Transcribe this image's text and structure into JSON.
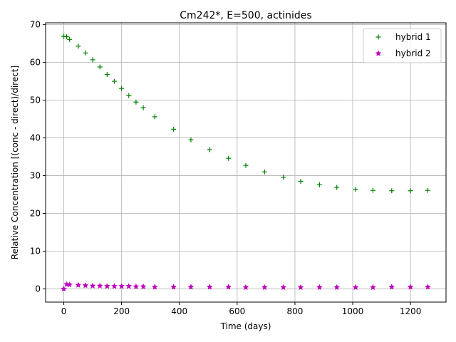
{
  "chart_data": {
    "type": "scatter",
    "title": "Cm242*, E=500, actinides",
    "xlabel": "Time (days)",
    "ylabel": "Relative Concentration [(conc - direct)/direct]",
    "xlim": [
      -63,
      1323
    ],
    "ylim": [
      -3.5,
      70.5
    ],
    "xticks": [
      0,
      200,
      400,
      600,
      800,
      1000,
      1200
    ],
    "yticks": [
      0,
      10,
      20,
      30,
      40,
      50,
      60,
      70
    ],
    "grid": true,
    "legend_position": "upper right",
    "series": [
      {
        "name": "hybrid 1",
        "marker": "plus",
        "color": "#008000",
        "x": [
          0,
          10,
          20,
          50,
          75,
          100,
          125,
          150,
          175,
          200,
          225,
          250,
          275,
          315,
          380,
          440,
          505,
          570,
          630,
          695,
          760,
          820,
          885,
          945,
          1010,
          1070,
          1135,
          1200,
          1260
        ],
        "y": [
          66.9,
          66.8,
          66.1,
          64.3,
          62.5,
          60.7,
          58.8,
          56.8,
          55.0,
          53.1,
          51.2,
          49.5,
          48.0,
          45.6,
          42.3,
          39.5,
          36.9,
          34.6,
          32.7,
          31.0,
          29.6,
          28.5,
          27.6,
          26.9,
          26.4,
          26.1,
          26.0,
          26.0,
          26.1
        ]
      },
      {
        "name": "hybrid 2",
        "marker": "star",
        "color": "#bf00bf",
        "x": [
          0,
          10,
          20,
          50,
          75,
          100,
          125,
          150,
          175,
          200,
          225,
          250,
          275,
          315,
          380,
          440,
          505,
          570,
          630,
          695,
          760,
          820,
          885,
          945,
          1010,
          1070,
          1135,
          1200,
          1260
        ],
        "y": [
          0.0,
          1.2,
          1.1,
          1.0,
          0.9,
          0.8,
          0.8,
          0.7,
          0.7,
          0.7,
          0.7,
          0.6,
          0.6,
          0.5,
          0.5,
          0.5,
          0.5,
          0.5,
          0.4,
          0.4,
          0.4,
          0.4,
          0.4,
          0.4,
          0.4,
          0.4,
          0.5,
          0.5,
          0.5
        ]
      }
    ]
  }
}
